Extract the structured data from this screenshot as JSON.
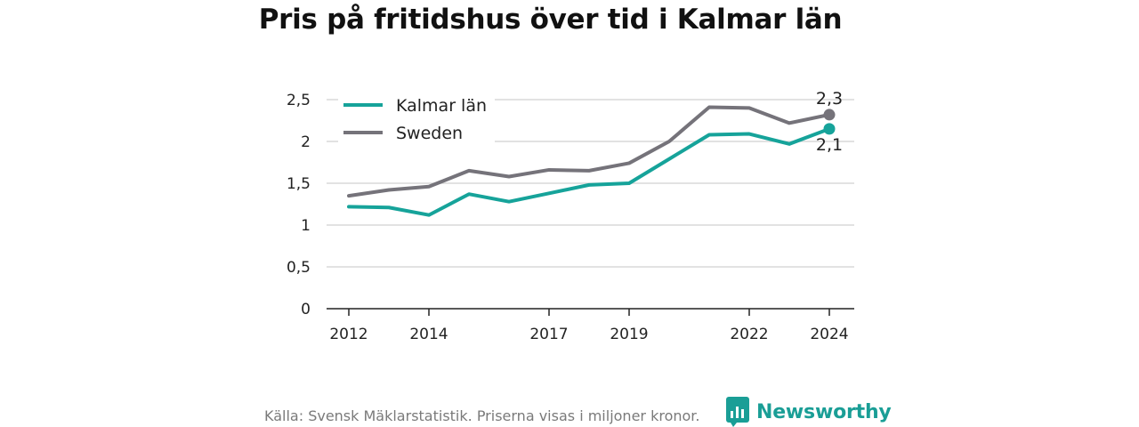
{
  "title": "Pris på fritidshus över tid i Kalmar län",
  "footer": {
    "source": "Källa: Svensk Mäklarstatistik. Priserna visas i miljoner kronor.",
    "brand": "Newsworthy"
  },
  "colors": {
    "kalmar": "#16a39a",
    "sweden": "#75737a",
    "axis": "#222222",
    "grid": "#d9d9d9"
  },
  "chart_data": {
    "type": "line",
    "x": [
      2012,
      2013,
      2014,
      2015,
      2016,
      2017,
      2018,
      2019,
      2020,
      2021,
      2022,
      2023,
      2024
    ],
    "xticks": [
      "2012",
      "2014",
      "2017",
      "2019",
      "2022",
      "2024"
    ],
    "yticks": [
      "0",
      "0,5",
      "1",
      "1,5",
      "2",
      "2,5"
    ],
    "ylim": [
      0,
      2.6
    ],
    "grid": true,
    "legend_position": "top-left",
    "series": [
      {
        "name": "Kalmar län",
        "values": [
          1.22,
          1.21,
          1.12,
          1.37,
          1.28,
          1.38,
          1.48,
          1.5,
          1.79,
          2.08,
          2.09,
          1.97,
          2.15
        ],
        "end_label": "2,1"
      },
      {
        "name": "Sweden",
        "values": [
          1.35,
          1.42,
          1.46,
          1.65,
          1.58,
          1.66,
          1.65,
          1.74,
          2.0,
          2.41,
          2.4,
          2.22,
          2.32
        ],
        "end_label": "2,3"
      }
    ]
  }
}
